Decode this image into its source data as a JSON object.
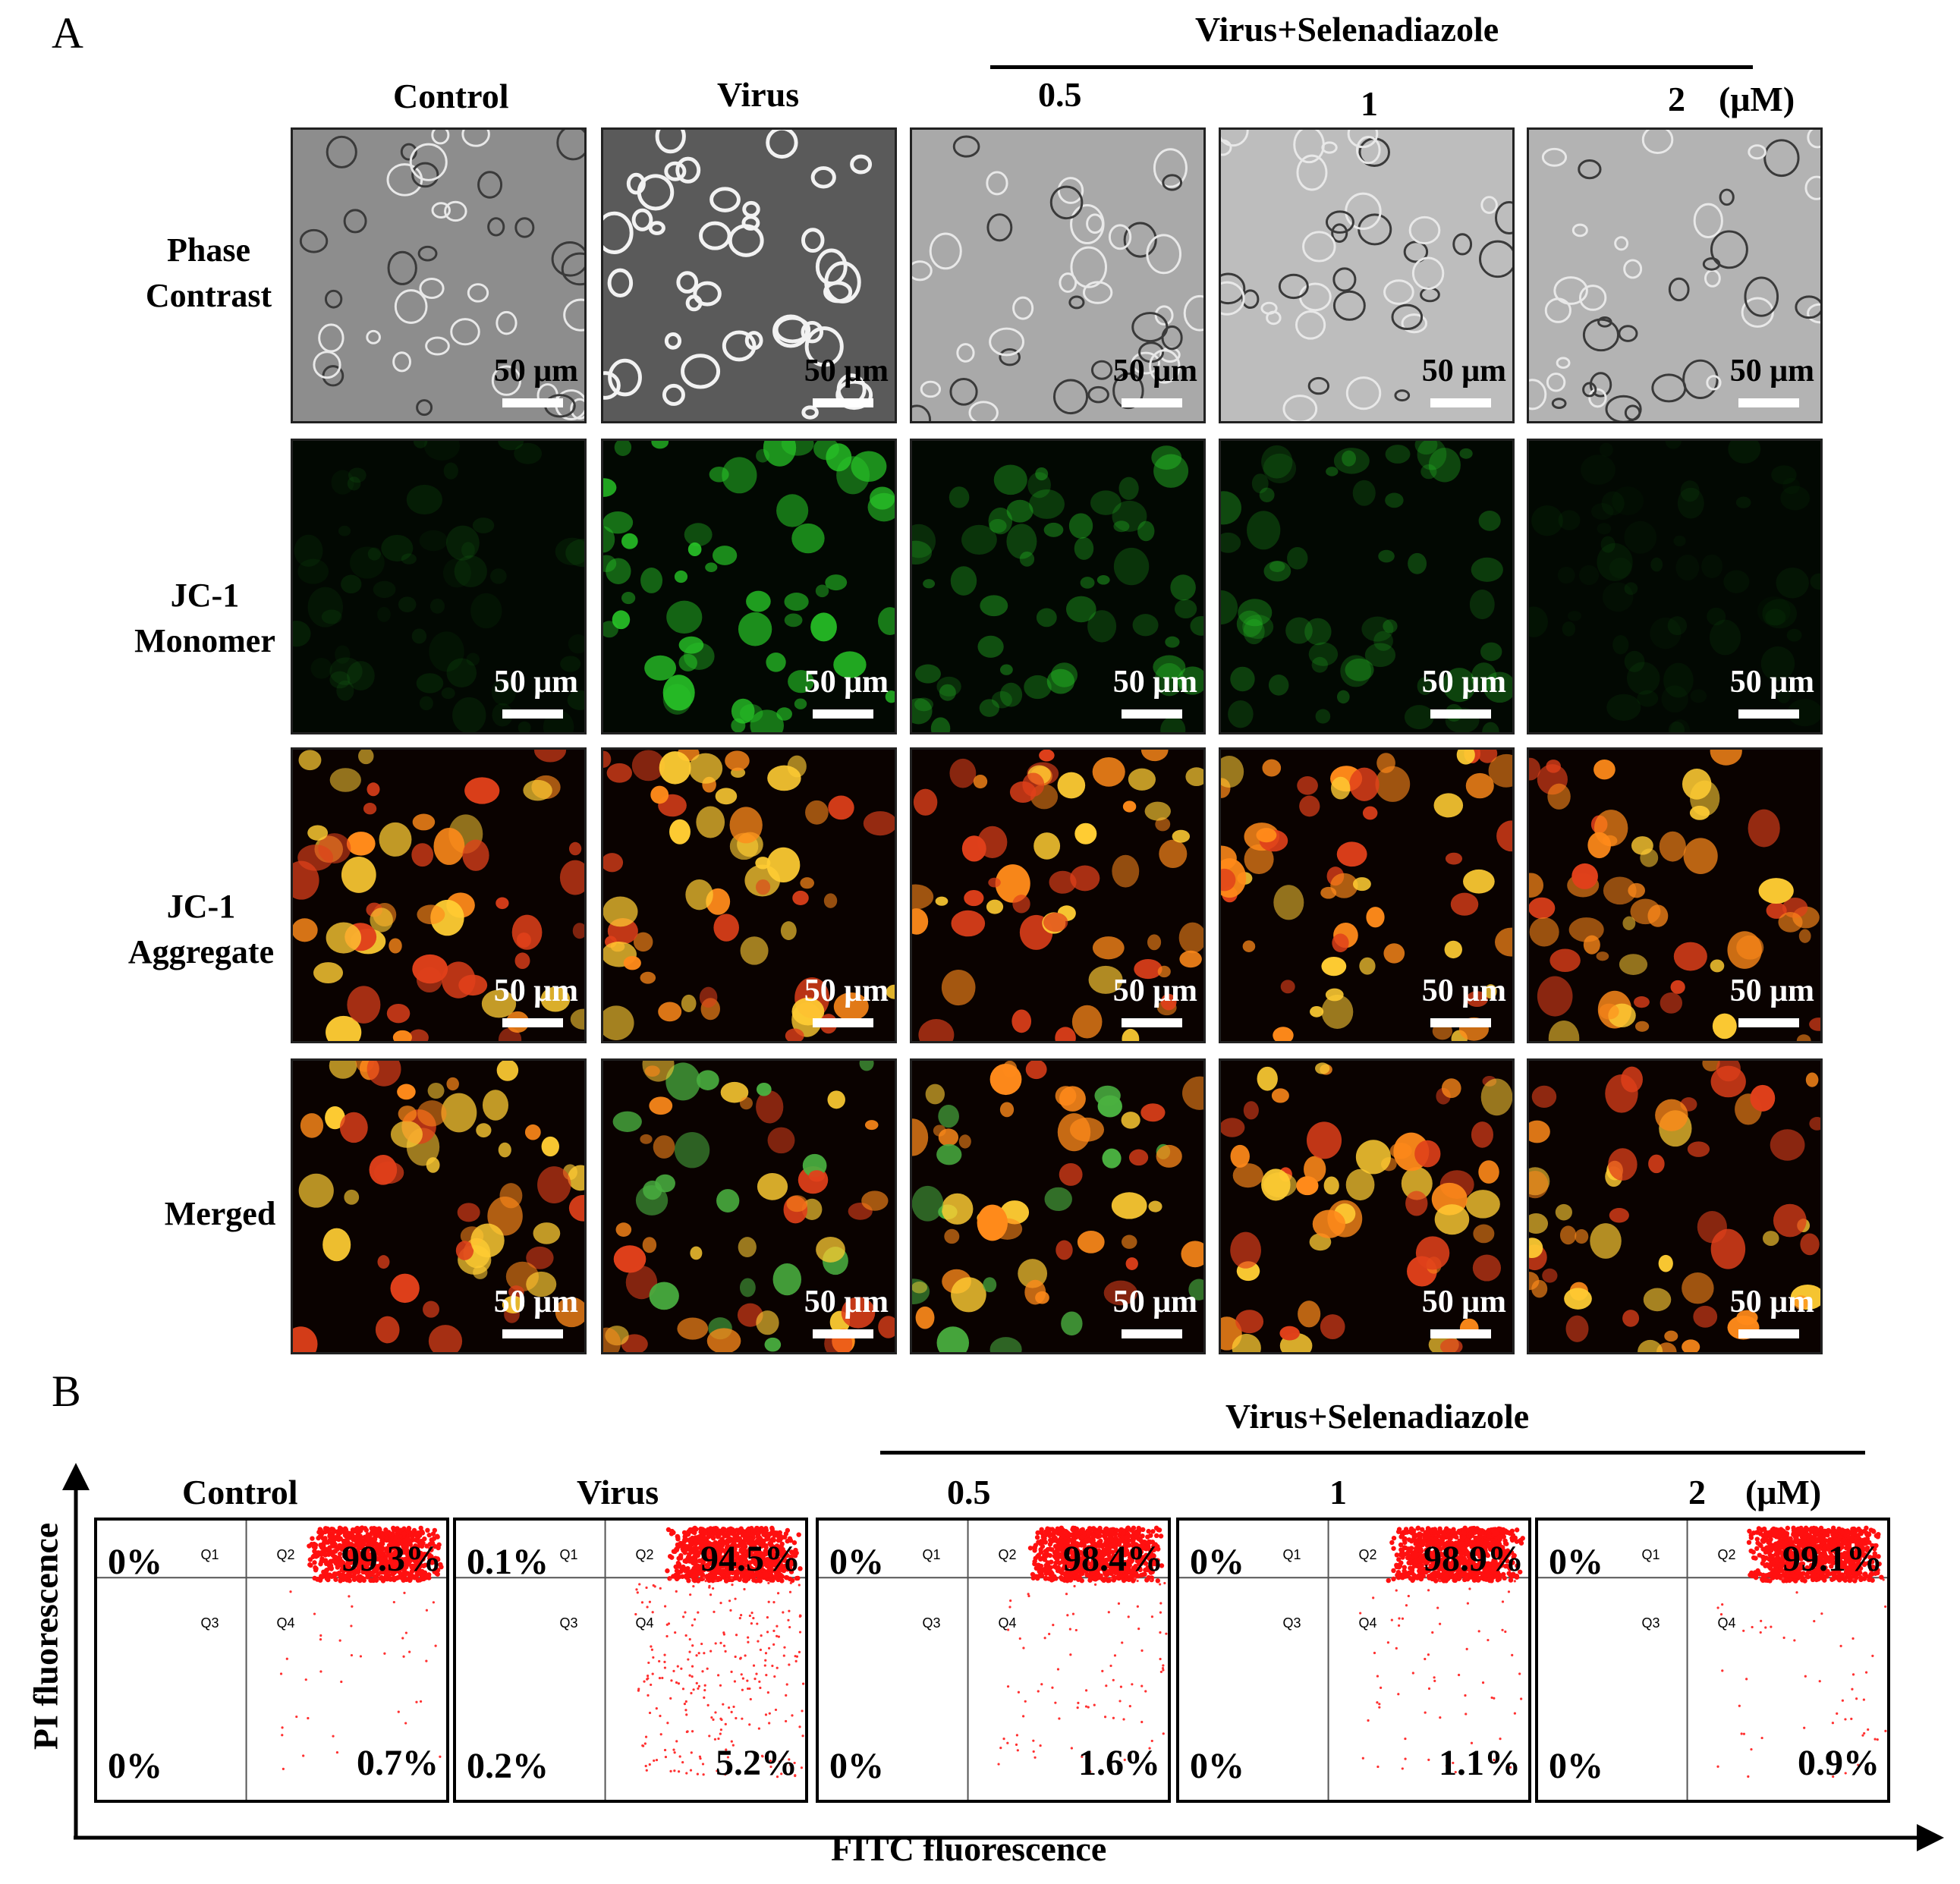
{
  "panel_a": {
    "letter": "A",
    "group_label": "Virus+Selenadiazole",
    "columns": [
      "Control",
      "Virus",
      "0.5",
      "1",
      "2"
    ],
    "unit": "(μM)",
    "rows": [
      {
        "line1": "Phase",
        "line2": "Contrast"
      },
      {
        "line1": "JC-1",
        "line2": "Monomer"
      },
      {
        "line1": "JC-1",
        "line2": "Aggregate"
      },
      {
        "line1": "Merged",
        "line2": ""
      }
    ],
    "scale_bar": "50 μm"
  },
  "panel_b": {
    "letter": "B",
    "group_label": "Virus+Selenadiazole",
    "columns": [
      "Control",
      "Virus",
      "0.5",
      "1",
      "2"
    ],
    "unit": "(μM)",
    "y_axis": "PI fluorescence",
    "x_axis": "FITC fluorescence",
    "quadrant_names": [
      "Q1",
      "Q2",
      "Q3",
      "Q4"
    ],
    "plots": [
      {
        "q1": "0%",
        "q2": "99.3%",
        "q3": "0%",
        "q4": "0.7%"
      },
      {
        "q1": "0.1%",
        "q2": "94.5%",
        "q3": "0.2%",
        "q4": "5.2%"
      },
      {
        "q1": "0%",
        "q2": "98.4%",
        "q3": "0%",
        "q4": "1.6%"
      },
      {
        "q1": "0%",
        "q2": "98.9%",
        "q3": "0%",
        "q4": "1.1%"
      },
      {
        "q1": "0%",
        "q2": "99.1%",
        "q3": "0%",
        "q4": "0.9%"
      }
    ]
  }
}
